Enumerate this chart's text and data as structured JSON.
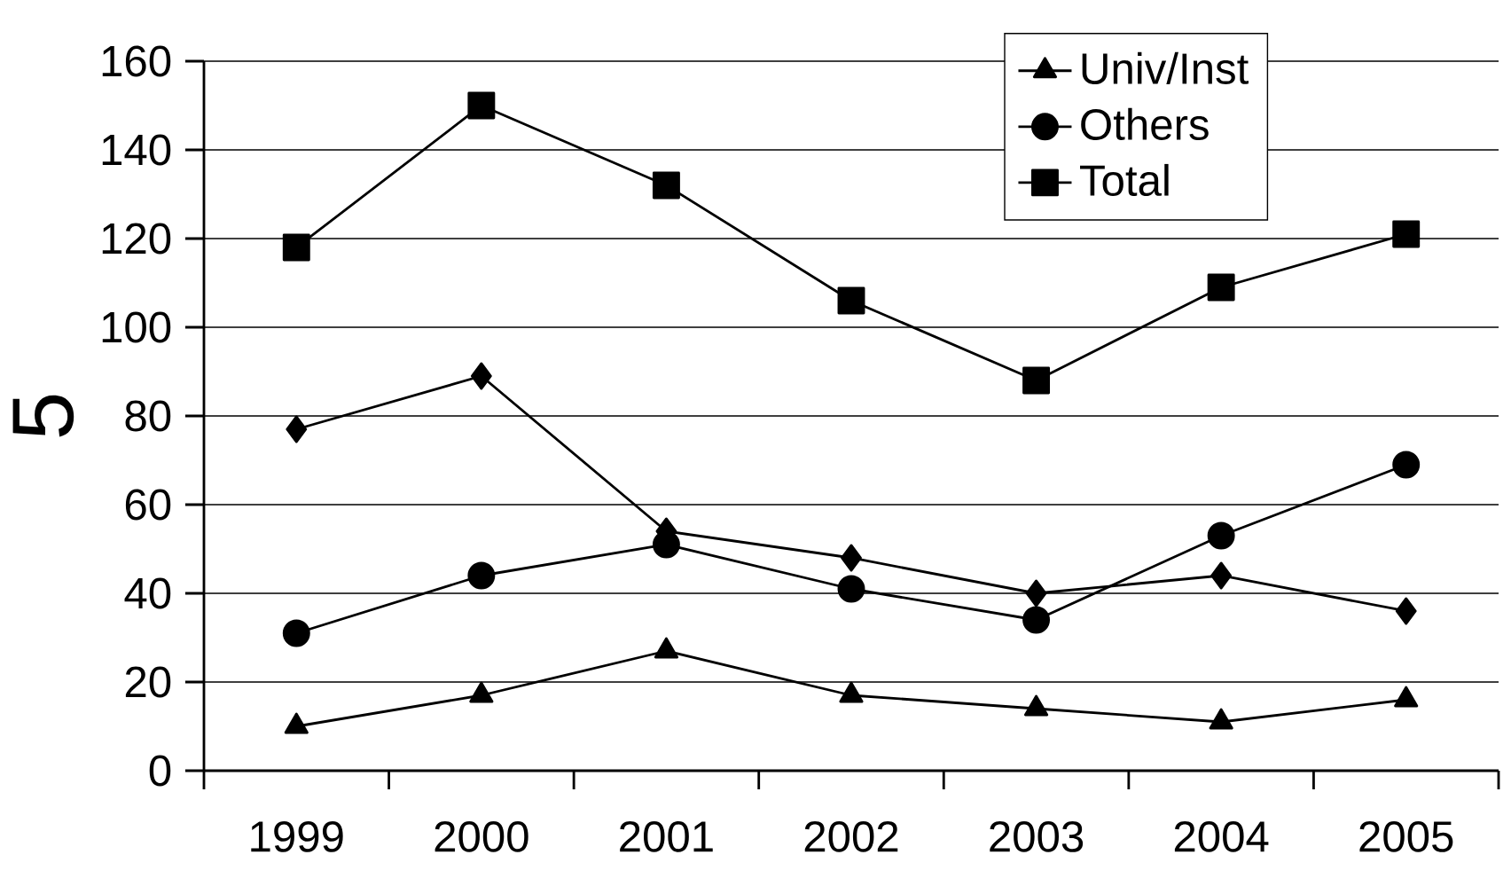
{
  "chart_data": {
    "type": "line",
    "ylabel": "5",
    "categories": [
      "1999",
      "2000",
      "2001",
      "2002",
      "2003",
      "2004",
      "2005"
    ],
    "series": [
      {
        "name": "Univ/Inst",
        "color": "#000000",
        "marker": "triangle",
        "values": [
          10,
          17,
          27,
          17,
          14,
          11,
          16
        ]
      },
      {
        "name": "Others",
        "color": "#000000",
        "marker": "circle",
        "values": [
          31,
          44,
          51,
          41,
          34,
          53,
          69
        ]
      },
      {
        "color": "#000000",
        "marker": "diamond",
        "values": [
          77,
          89,
          54,
          48,
          40,
          44,
          36
        ]
      },
      {
        "name": "Total",
        "color": "#000000",
        "marker": "square",
        "values": [
          118,
          150,
          132,
          106,
          88,
          109,
          121
        ]
      }
    ],
    "ylim": [
      0,
      160
    ],
    "yticks": [
      0,
      20,
      40,
      60,
      80,
      100,
      120,
      140,
      160
    ],
    "grid": "y",
    "legend": "top right",
    "line_style": "solid"
  }
}
